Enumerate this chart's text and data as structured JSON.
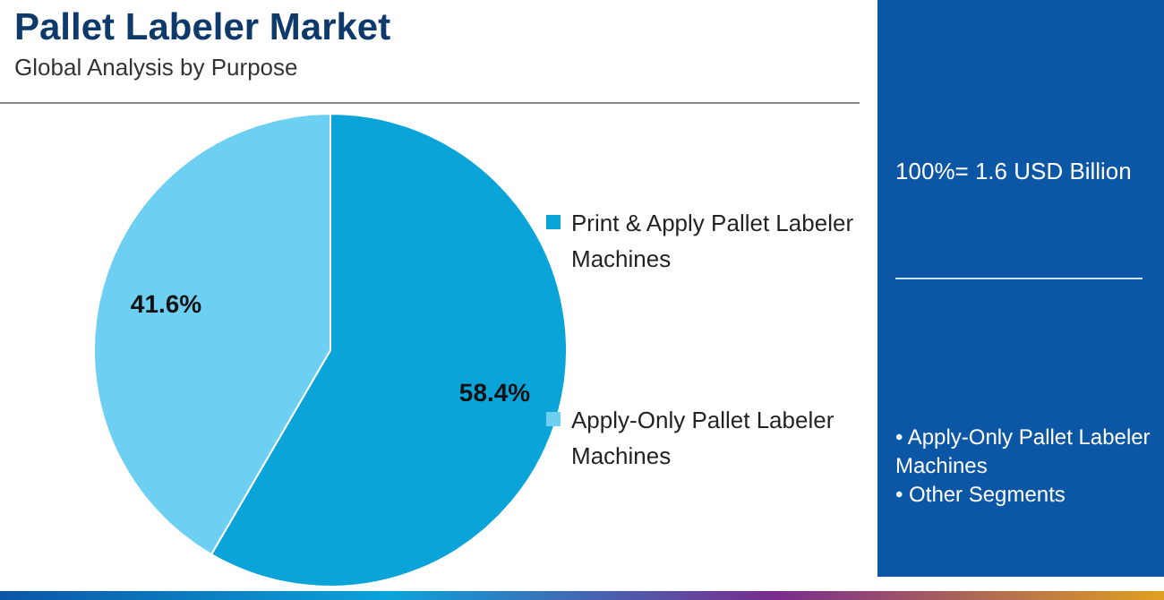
{
  "chart_data": {
    "type": "pie",
    "title": "Pallet Labeler Market",
    "subtitle": "Global Analysis by Purpose",
    "categories": [
      "Print & Apply Pallet Labeler Machines",
      "Apply-Only Pallet Labeler Machines"
    ],
    "values": [
      58.4,
      41.6
    ],
    "colors": [
      "#0ba4d9",
      "#6dcff2"
    ],
    "value_labels": [
      "58.4%",
      "41.6%"
    ],
    "legend": "right",
    "annotations": [
      "100%= 1.6 USD Billion",
      "• Apply-Only Pallet Labeler Machines",
      "• Other Segments"
    ]
  }
}
